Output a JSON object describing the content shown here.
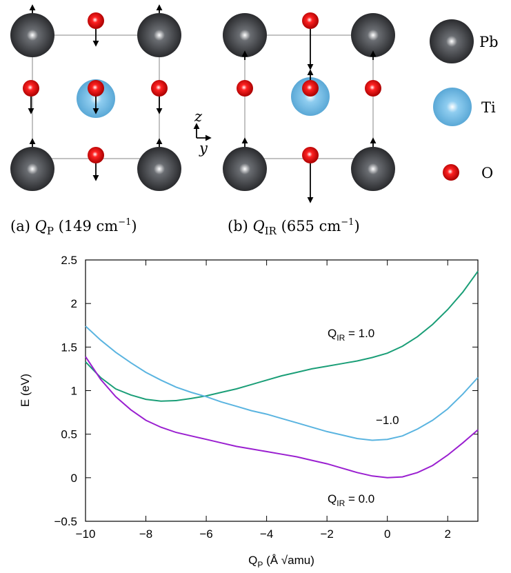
{
  "diagram": {
    "captions": [
      {
        "prefix": "(a) ",
        "symbol": "Q",
        "sub": "P",
        "freq": " (149 cm",
        "sup": "−1",
        "close": ")"
      },
      {
        "prefix": "(b) ",
        "symbol": "Q",
        "sub": "IR",
        "freq": " (655 cm",
        "sup": "−1",
        "close": ")"
      }
    ],
    "legend": [
      "Pb",
      "Ti",
      "O"
    ],
    "axes": [
      "z",
      "y"
    ]
  },
  "chart_data": {
    "type": "line",
    "x": [
      -10,
      -9.5,
      -9,
      -8.5,
      -8,
      -7.5,
      -7,
      -6.5,
      -6,
      -5.5,
      -5,
      -4.5,
      -4,
      -3.5,
      -3,
      -2.5,
      -2,
      -1.5,
      -1,
      -0.5,
      0,
      0.5,
      1,
      1.5,
      2,
      2.5,
      3
    ],
    "series": [
      {
        "color": "#1a9e77",
        "values": [
          1.33,
          1.15,
          1.02,
          0.95,
          0.9,
          0.88,
          0.885,
          0.91,
          0.94,
          0.98,
          1.02,
          1.07,
          1.12,
          1.17,
          1.21,
          1.25,
          1.28,
          1.31,
          1.34,
          1.38,
          1.43,
          1.51,
          1.62,
          1.76,
          1.93,
          2.13,
          2.37
        ]
      },
      {
        "color": "#5ab4e0",
        "values": [
          1.74,
          1.58,
          1.44,
          1.32,
          1.21,
          1.12,
          1.04,
          0.98,
          0.93,
          0.87,
          0.82,
          0.77,
          0.73,
          0.68,
          0.63,
          0.58,
          0.53,
          0.49,
          0.45,
          0.43,
          0.44,
          0.48,
          0.56,
          0.66,
          0.79,
          0.96,
          1.15
        ]
      },
      {
        "color": "#9a1fd0",
        "values": [
          1.39,
          1.13,
          0.93,
          0.78,
          0.66,
          0.58,
          0.52,
          0.48,
          0.44,
          0.4,
          0.36,
          0.33,
          0.3,
          0.27,
          0.24,
          0.2,
          0.16,
          0.11,
          0.06,
          0.02,
          0.0,
          0.01,
          0.06,
          0.14,
          0.26,
          0.4,
          0.55
        ]
      }
    ],
    "annotations": [
      {
        "symbol": "Q",
        "sub": "IR",
        "text": " = 1.0"
      },
      {
        "text": "−1.0"
      },
      {
        "symbol": "Q",
        "sub": "IR",
        "text": " = 0.0"
      }
    ],
    "ylabel": "E (eV)",
    "xlabel": {
      "symbol": "Q",
      "sub": "P",
      "text": " (Å √amu)"
    },
    "xlim": [
      -10,
      3
    ],
    "ylim": [
      -0.5,
      2.5
    ],
    "xticks": [
      {
        "value": -10,
        "label": "−10"
      },
      {
        "value": -8,
        "label": "−8"
      },
      {
        "value": -6,
        "label": "−6"
      },
      {
        "value": -4,
        "label": "−4"
      },
      {
        "value": -2,
        "label": "−2"
      },
      0,
      2
    ],
    "yticks": [
      {
        "value": -0.5,
        "label": "−0.5"
      },
      0,
      0.5,
      1,
      1.5,
      2,
      2.5
    ]
  }
}
